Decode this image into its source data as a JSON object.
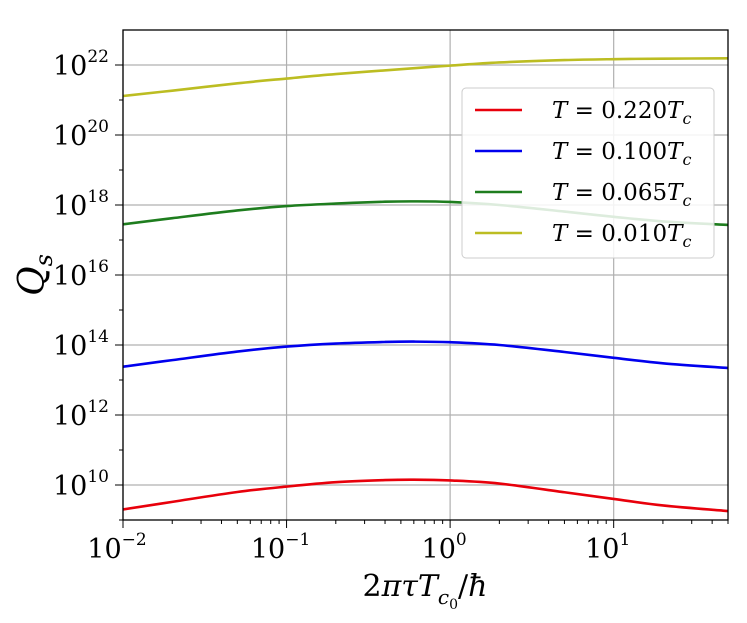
{
  "chart_data": {
    "type": "line",
    "title": "",
    "xlabel": "2πτT_{c0}/ħ",
    "ylabel": "Q_s",
    "x_scale": "log",
    "y_scale": "log",
    "xlim": [
      0.01,
      50
    ],
    "ylim": [
      1000000000.0,
      1e+23
    ],
    "grid": true,
    "legend_position": "top-right",
    "x_ticks": [
      {
        "value": 0.01,
        "base": "10",
        "exp": "−2"
      },
      {
        "value": 0.1,
        "base": "10",
        "exp": "−1"
      },
      {
        "value": 1,
        "base": "10",
        "exp": "0"
      },
      {
        "value": 10,
        "base": "10",
        "exp": "1"
      }
    ],
    "y_ticks": [
      {
        "value": 10000000000.0,
        "base": "10",
        "exp": "10"
      },
      {
        "value": 1000000000000.0,
        "base": "10",
        "exp": "12"
      },
      {
        "value": 100000000000000.0,
        "base": "10",
        "exp": "14"
      },
      {
        "value": 1e+16,
        "base": "10",
        "exp": "16"
      },
      {
        "value": 1e+18,
        "base": "10",
        "exp": "18"
      },
      {
        "value": 1e+20,
        "base": "10",
        "exp": "20"
      },
      {
        "value": 1e+22,
        "base": "10",
        "exp": "22"
      }
    ],
    "series": [
      {
        "name": "T = 0.220T_c",
        "legend": {
          "pre": "T",
          "mid": " = 0.220",
          "post": "T",
          "sub": "c"
        },
        "color": "#e8000b",
        "points": [
          [
            0.01,
            2000000000.0
          ],
          [
            0.02,
            3300000000.0
          ],
          [
            0.05,
            6300000000.0
          ],
          [
            0.1,
            9000000000.0
          ],
          [
            0.2,
            12000000000.0
          ],
          [
            0.4,
            13800000000.0
          ],
          [
            0.6,
            14200000000.0
          ],
          [
            1.0,
            13500000000.0
          ],
          [
            2.0,
            11000000000.0
          ],
          [
            5.0,
            6200000000.0
          ],
          [
            10.0,
            4000000000.0
          ],
          [
            20.0,
            2600000000.0
          ],
          [
            50.0,
            1800000000.0
          ]
        ]
      },
      {
        "name": "T = 0.100T_c",
        "legend": {
          "pre": "T",
          "mid": " = 0.100",
          "post": "T",
          "sub": "c"
        },
        "color": "#0000ee",
        "points": [
          [
            0.01,
            24000000000000.0
          ],
          [
            0.02,
            37000000000000.0
          ],
          [
            0.05,
            65000000000000.0
          ],
          [
            0.1,
            90000000000000.0
          ],
          [
            0.2,
            110000000000000.0
          ],
          [
            0.4,
            122000000000000.0
          ],
          [
            0.6,
            125000000000000.0
          ],
          [
            1.0,
            120000000000000.0
          ],
          [
            2.0,
            100000000000000.0
          ],
          [
            5.0,
            63000000000000.0
          ],
          [
            10.0,
            43000000000000.0
          ],
          [
            20.0,
            30000000000000.0
          ],
          [
            50.0,
            22000000000000.0
          ]
        ]
      },
      {
        "name": "T = 0.065T_c",
        "legend": {
          "pre": "T",
          "mid": " = 0.065",
          "post": "T",
          "sub": "c"
        },
        "color": "#1e7d1e",
        "points": [
          [
            0.01,
            2.8e+17
          ],
          [
            0.02,
            4.2e+17
          ],
          [
            0.05,
            7e+17
          ],
          [
            0.1,
            9.3e+17
          ],
          [
            0.2,
            1.1e+18
          ],
          [
            0.4,
            1.24e+18
          ],
          [
            0.6,
            1.27e+18
          ],
          [
            1.0,
            1.22e+18
          ],
          [
            2.0,
            1e+18
          ],
          [
            5.0,
            6.5e+17
          ],
          [
            10.0,
            4.6e+17
          ],
          [
            20.0,
            3.4e+17
          ],
          [
            50.0,
            2.7e+17
          ]
        ]
      },
      {
        "name": "T = 0.010T_c",
        "legend": {
          "pre": "T",
          "mid": " = 0.010",
          "post": "T",
          "sub": "c"
        },
        "color": "#bcbd22",
        "points": [
          [
            0.01,
            1.3e+21
          ],
          [
            0.02,
            1.85e+21
          ],
          [
            0.05,
            3e+21
          ],
          [
            0.1,
            4.1e+21
          ],
          [
            0.2,
            5.5e+21
          ],
          [
            0.5,
            7.6e+21
          ],
          [
            1.0,
            9.6e+21
          ],
          [
            2.0,
            1.18e+22
          ],
          [
            5.0,
            1.38e+22
          ],
          [
            10.0,
            1.47e+22
          ],
          [
            20.0,
            1.52e+22
          ],
          [
            50.0,
            1.55e+22
          ]
        ]
      }
    ]
  }
}
